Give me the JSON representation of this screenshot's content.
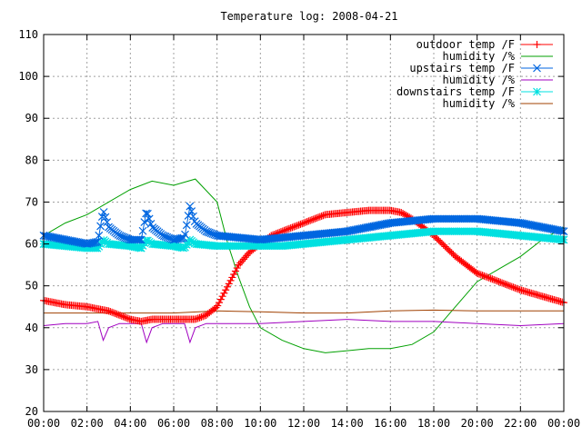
{
  "chart_data": {
    "type": "line",
    "title": "Temperature log: 2008-04-21",
    "xlabel": "",
    "ylabel": "",
    "xlim": [
      0,
      24
    ],
    "ylim": [
      20,
      110
    ],
    "grid": true,
    "legend_position": "top-right",
    "x_tick_labels": [
      "00:00",
      "02:00",
      "04:00",
      "06:00",
      "08:00",
      "10:00",
      "12:00",
      "14:00",
      "16:00",
      "18:00",
      "20:00",
      "22:00",
      "00:00"
    ],
    "y_tick_labels": [
      "20",
      "30",
      "40",
      "50",
      "60",
      "70",
      "80",
      "90",
      "100",
      "110"
    ],
    "series": [
      {
        "name": "outdoor temp /F",
        "color": "#ff0000",
        "marker": "plus",
        "x": [
          0,
          1,
          2,
          3,
          4,
          4.5,
          5,
          6,
          7,
          7.5,
          8,
          8.5,
          9,
          9.5,
          10,
          10.5,
          11,
          12,
          13,
          14,
          15,
          16,
          16.5,
          17,
          18,
          19,
          20,
          21,
          22,
          23,
          24
        ],
        "y": [
          46.5,
          45.5,
          45,
          44,
          42,
          41.5,
          42,
          42,
          42,
          43,
          45,
          50,
          55,
          58,
          60,
          62,
          63,
          65,
          67,
          67.5,
          68,
          68,
          67.5,
          66,
          62,
          57,
          53,
          51,
          49,
          47.5,
          46
        ]
      },
      {
        "name": "humidity /%",
        "color": "#00a000",
        "marker": "none",
        "x": [
          0,
          1,
          2,
          3,
          4,
          5,
          6,
          7,
          8,
          8.5,
          9,
          9.5,
          10,
          11,
          12,
          13,
          14,
          15,
          16,
          17,
          18,
          19,
          20,
          21,
          22,
          23,
          24
        ],
        "y": [
          62,
          65,
          67,
          70,
          73,
          75,
          74,
          75.5,
          70,
          60,
          52,
          45,
          40,
          37,
          35,
          34,
          34.5,
          35,
          35,
          36,
          39,
          45,
          51,
          54,
          57,
          61,
          64
        ]
      },
      {
        "name": "upstairs temp /F",
        "color": "#0066e0",
        "marker": "cross",
        "x": [
          0,
          1,
          2,
          2.5,
          2.75,
          3,
          3.5,
          4,
          4.5,
          4.75,
          5,
          5.5,
          6,
          6.5,
          6.75,
          7,
          7.5,
          8,
          9,
          10,
          11,
          12,
          13,
          14,
          15,
          16,
          17,
          18,
          18.5,
          19,
          20,
          21,
          22,
          23,
          24
        ],
        "y": [
          62,
          61,
          60,
          60.5,
          68,
          64,
          62,
          61,
          61,
          68,
          64,
          62,
          61,
          61.5,
          69,
          65,
          63,
          62,
          61.5,
          61,
          61.5,
          62,
          62.5,
          63,
          64,
          65,
          65.5,
          66,
          66,
          66,
          66,
          65.5,
          65,
          64,
          63
        ]
      },
      {
        "name": "humidity /%",
        "color": "#a000c0",
        "marker": "none",
        "x": [
          0,
          1,
          2,
          2.5,
          2.75,
          3,
          3.5,
          4,
          4.5,
          4.75,
          5,
          5.5,
          6,
          6.5,
          6.75,
          7,
          7.5,
          8,
          10,
          12,
          14,
          16,
          18,
          20,
          22,
          24
        ],
        "y": [
          40.5,
          41,
          41,
          41.5,
          37,
          40,
          41,
          41,
          41,
          36.5,
          40,
          41,
          41,
          41,
          36.5,
          40,
          41,
          41,
          41,
          41.5,
          42,
          41.5,
          41.5,
          41,
          40.5,
          41
        ]
      },
      {
        "name": "downstairs temp /F",
        "color": "#00e0e0",
        "marker": "star",
        "x": [
          0,
          1,
          2,
          2.5,
          2.75,
          3,
          4,
          4.5,
          4.75,
          5,
          6,
          6.5,
          6.75,
          7,
          8,
          9,
          10,
          11,
          12,
          13,
          14,
          15,
          16,
          17,
          18,
          19,
          20,
          21,
          22,
          23,
          24
        ],
        "y": [
          60,
          59.5,
          59,
          59,
          61,
          60,
          59.5,
          59,
          61,
          60,
          59.5,
          59,
          61,
          60,
          59.5,
          59.5,
          59.5,
          59.5,
          60,
          60.5,
          61,
          61.5,
          62,
          62.5,
          63,
          63,
          63,
          62.5,
          62,
          61.5,
          61
        ]
      },
      {
        "name": "humidity /%",
        "color": "#a04000",
        "marker": "none",
        "x": [
          0,
          2,
          4,
          6,
          8,
          10,
          12,
          14,
          16,
          18,
          20,
          22,
          24
        ],
        "y": [
          43.5,
          43.5,
          43.5,
          43.5,
          44,
          43.8,
          43.5,
          43.5,
          44,
          44.2,
          44,
          44,
          44
        ]
      }
    ]
  }
}
